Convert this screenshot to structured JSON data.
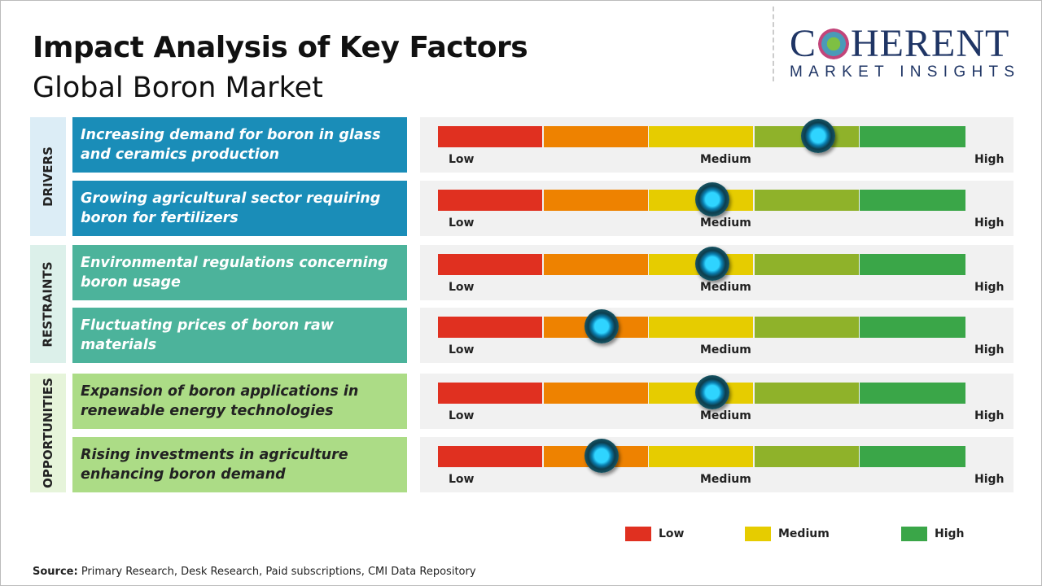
{
  "title": "Impact Analysis of Key Factors",
  "subtitle": "Global Boron Market",
  "logo": {
    "line1": "COHERENT",
    "line2": "MARKET INSIGHTS"
  },
  "colors": {
    "drivers": "#1a8db8",
    "restraints": "#4cb39b",
    "opportunities": "#acdc86",
    "low": "#e03020",
    "low_medium": "#ee8200",
    "medium": "#e6cc00",
    "medium_high": "#8fb22a",
    "high": "#3aa648"
  },
  "chart_data": {
    "type": "gauge",
    "scale_labels": [
      "Low",
      "Medium",
      "High"
    ],
    "categories": [
      {
        "name": "DRIVERS",
        "factors": [
          {
            "label": "Increasing demand for boron in glass and ceramics production",
            "impact": 0.72
          },
          {
            "label": "Growing agricultural sector requiring boron for fertilizers",
            "impact": 0.52
          }
        ]
      },
      {
        "name": "RESTRAINTS",
        "factors": [
          {
            "label": "Environmental regulations concerning boron usage",
            "impact": 0.52
          },
          {
            "label": "Fluctuating prices of boron raw materials",
            "impact": 0.31
          }
        ]
      },
      {
        "name": "OPPORTUNITIES",
        "factors": [
          {
            "label": "Expansion of boron applications in renewable energy technologies",
            "impact": 0.52
          },
          {
            "label": "Rising investments in agriculture enhancing boron demand",
            "impact": 0.31
          }
        ]
      }
    ],
    "legend": [
      "Low",
      "Medium",
      "High"
    ]
  },
  "source_label": "Source:",
  "source_text": " Primary Research, Desk Research, Paid subscriptions, CMI Data Repository"
}
